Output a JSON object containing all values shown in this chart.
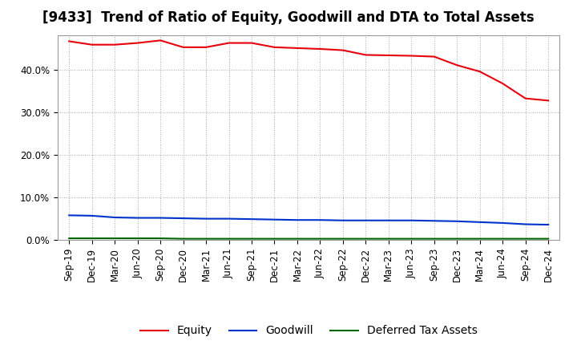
{
  "title": "[9433]  Trend of Ratio of Equity, Goodwill and DTA to Total Assets",
  "x_labels": [
    "Sep-19",
    "Dec-19",
    "Mar-20",
    "Jun-20",
    "Sep-20",
    "Dec-20",
    "Mar-21",
    "Jun-21",
    "Sep-21",
    "Dec-21",
    "Mar-22",
    "Jun-22",
    "Sep-22",
    "Dec-22",
    "Mar-23",
    "Jun-23",
    "Sep-23",
    "Dec-23",
    "Mar-24",
    "Jun-24",
    "Sep-24",
    "Dec-24"
  ],
  "equity": [
    0.466,
    0.458,
    0.458,
    0.462,
    0.468,
    0.452,
    0.452,
    0.462,
    0.462,
    0.452,
    0.45,
    0.448,
    0.445,
    0.434,
    0.433,
    0.432,
    0.43,
    0.41,
    0.395,
    0.367,
    0.332,
    0.327
  ],
  "goodwill": [
    0.058,
    0.057,
    0.053,
    0.052,
    0.052,
    0.051,
    0.05,
    0.05,
    0.049,
    0.048,
    0.047,
    0.047,
    0.046,
    0.046,
    0.046,
    0.046,
    0.045,
    0.044,
    0.042,
    0.04,
    0.037,
    0.036
  ],
  "dta": [
    0.004,
    0.004,
    0.004,
    0.004,
    0.004,
    0.003,
    0.003,
    0.003,
    0.003,
    0.003,
    0.003,
    0.003,
    0.003,
    0.003,
    0.003,
    0.003,
    0.003,
    0.003,
    0.003,
    0.003,
    0.003,
    0.003
  ],
  "equity_color": "#e8000d",
  "goodwill_color": "#0033cc",
  "dta_color": "#006600",
  "bg_color": "#ffffff",
  "plot_bg_color": "#ffffff",
  "grid_color": "#aaaaaa",
  "ylim": [
    0.0,
    0.48
  ],
  "yticks": [
    0.0,
    0.1,
    0.2,
    0.3,
    0.4
  ],
  "legend_labels": [
    "Equity",
    "Goodwill",
    "Deferred Tax Assets"
  ],
  "title_fontsize": 12,
  "tick_fontsize": 8.5,
  "legend_fontsize": 10
}
